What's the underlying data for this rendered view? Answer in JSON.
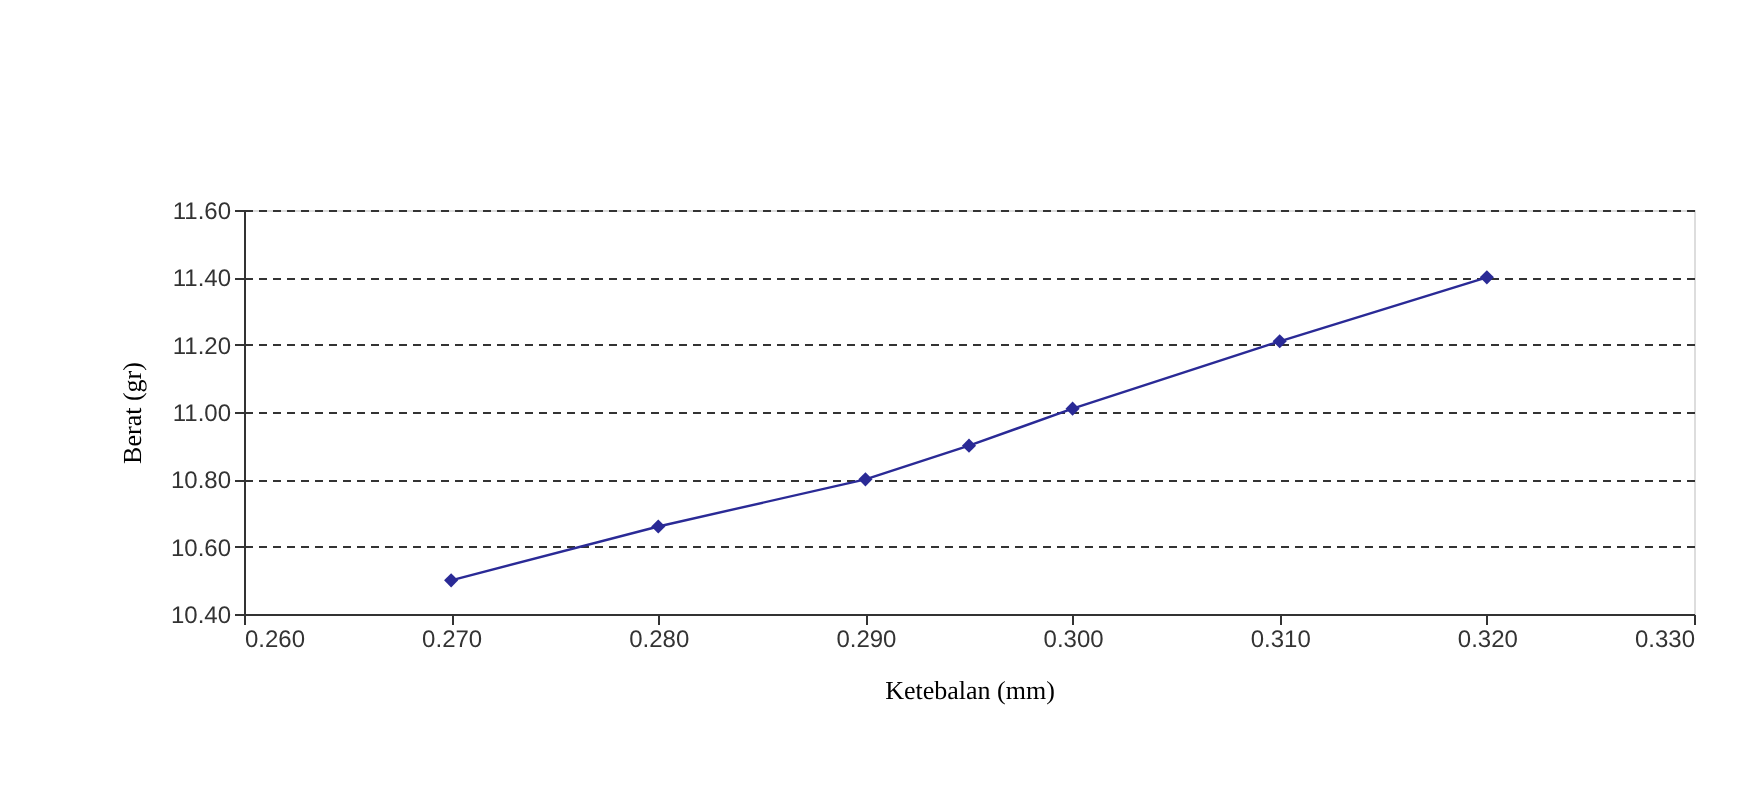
{
  "chart_data": {
    "type": "line",
    "xlabel": "Ketebalan (mm)",
    "ylabel": "Berat (gr)",
    "x": [
      0.27,
      0.28,
      0.29,
      0.295,
      0.3,
      0.31,
      0.32
    ],
    "series": [
      {
        "color": "#2a2a96",
        "values": [
          10.5,
          10.66,
          10.8,
          10.9,
          11.01,
          11.21,
          11.4
        ]
      }
    ],
    "xlim": [
      0.26,
      0.33
    ],
    "xticks": [
      {
        "value": 0.26,
        "label": "0.260"
      },
      {
        "value": 0.27,
        "label": "0.270"
      },
      {
        "value": 0.28,
        "label": "0.280"
      },
      {
        "value": 0.29,
        "label": "0.290"
      },
      {
        "value": 0.3,
        "label": "0.300"
      },
      {
        "value": 0.31,
        "label": "0.310"
      },
      {
        "value": 0.32,
        "label": "0.320"
      },
      {
        "value": 0.33,
        "label": "0.330"
      }
    ],
    "ylim": [
      10.4,
      11.6
    ],
    "yticks": [
      {
        "value": 10.4,
        "label": "10.40"
      },
      {
        "value": 10.6,
        "label": "10.60"
      },
      {
        "value": 10.8,
        "label": "10.80"
      },
      {
        "value": 11.0,
        "label": "11.00"
      },
      {
        "value": 11.2,
        "label": "11.20"
      },
      {
        "value": 11.4,
        "label": "11.40"
      },
      {
        "value": 11.6,
        "label": "11.60"
      }
    ],
    "grid": "y",
    "marker": "diamond",
    "line_style": "solid",
    "legend": false
  }
}
